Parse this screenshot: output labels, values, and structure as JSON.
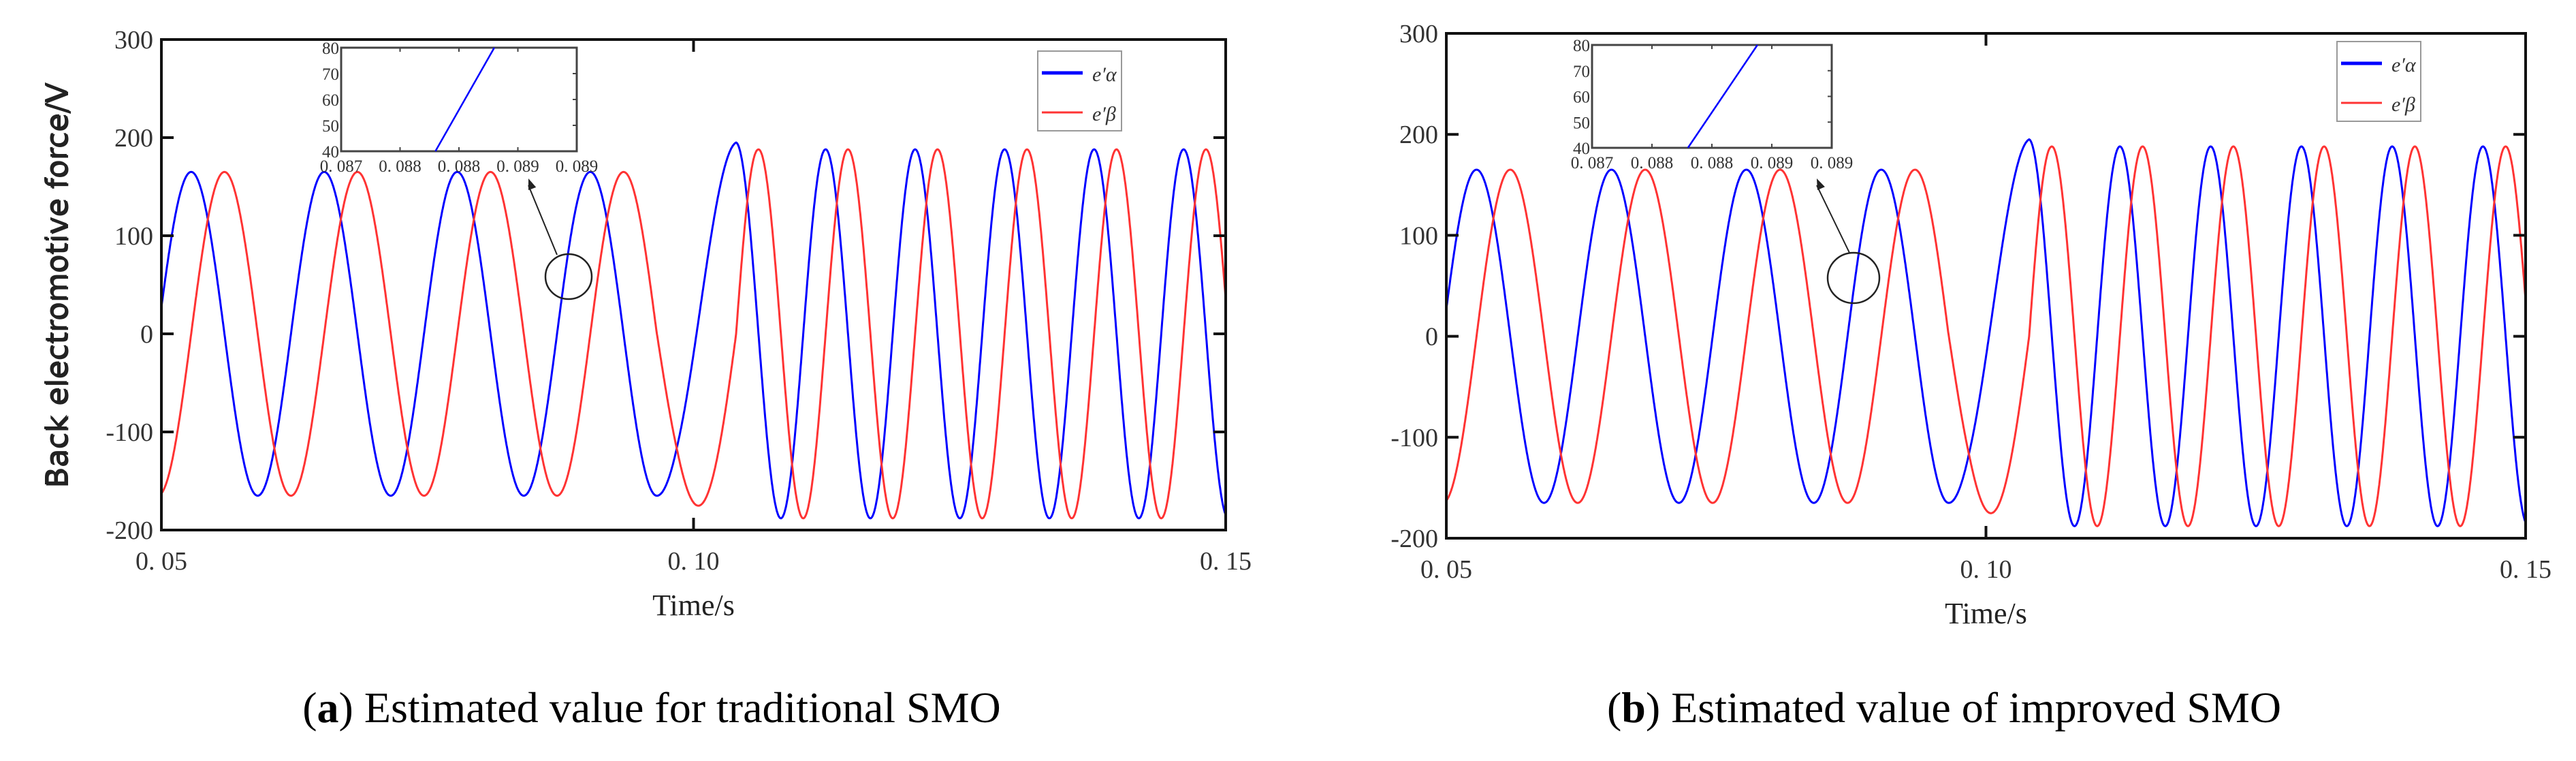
{
  "chart_data": [
    {
      "type": "line",
      "panel": "a",
      "caption_letter": "a",
      "caption_text": "Estimated value for traditional SMO",
      "xlabel": "Time/s",
      "ylabel": "Back electromotive force/V",
      "xlim": [
        0.05,
        0.15
      ],
      "ylim": [
        -200,
        300
      ],
      "xticks": [
        0.05,
        0.1,
        0.15
      ],
      "xtick_labels": [
        "0. 05",
        "0. 10",
        "0. 15"
      ],
      "yticks": [
        -200,
        -100,
        0,
        100,
        200,
        300
      ],
      "ytick_labels": [
        "-200",
        "-100",
        "0",
        "100",
        "200",
        "300"
      ],
      "legend": {
        "placement": "top-right",
        "entries": [
          {
            "label": "e′α",
            "color": "#0000ff"
          },
          {
            "label": "e′β",
            "color": "#ff3333"
          }
        ]
      },
      "series_model": {
        "description_of_curves": "e_alpha = A(t)·sin(2π·cycles(t)), e_beta = −A(t)·cos(2π·cycles(t))",
        "phase_knots_t": [
          0.05,
          0.0965,
          0.104,
          0.15
        ],
        "phase_knots_cycles": [
          0.026,
          3.746,
          4.25,
          9.72
        ],
        "amplitude_knots_t": [
          0.05,
          0.0985,
          0.104,
          0.106,
          0.15
        ],
        "amplitude_knots_v": [
          165,
          165,
          195,
          188,
          188
        ]
      },
      "series": [
        {
          "name": "e′α",
          "color": "#0000ff",
          "peaks_t": [
            0.0528,
            0.0653,
            0.0778,
            0.0903,
            0.104,
            0.1125,
            0.1209,
            0.1292,
            0.1376,
            0.1459
          ],
          "peak_value_before_0_1": 165,
          "peak_value_after_0_1": 188
        },
        {
          "name": "e′β",
          "color": "#ff3333",
          "peak_value_before_0_1": 165,
          "peak_value_after_0_1": 188
        }
      ],
      "inset": {
        "xlim": [
          0.087,
          0.089
        ],
        "ylim": [
          40,
          80
        ],
        "xtick_labels": [
          "0. 087",
          "0. 088",
          "0. 088",
          "0. 089",
          "0. 089"
        ],
        "ytick_labels": [
          "40",
          "50",
          "60",
          "70",
          "80"
        ],
        "line": {
          "x": [
            0.0878,
            0.0883
          ],
          "y": [
            40,
            80
          ],
          "color": "#0000ff"
        },
        "zoom_target": {
          "t": 0.089,
          "v": 60
        }
      }
    },
    {
      "type": "line",
      "panel": "b",
      "caption_letter": "b",
      "caption_text": "Estimated value of improved SMO",
      "xlabel": "Time/s",
      "ylabel": "Back electromotive force/V",
      "xlim": [
        0.05,
        0.15
      ],
      "ylim": [
        -200,
        300
      ],
      "xticks": [
        0.05,
        0.1,
        0.15
      ],
      "xtick_labels": [
        "0. 05",
        "0. 10",
        "0. 15"
      ],
      "yticks": [
        -200,
        -100,
        0,
        100,
        200,
        300
      ],
      "ytick_labels": [
        "-200",
        "-100",
        "0",
        "100",
        "200",
        "300"
      ],
      "legend": {
        "placement": "top-right",
        "entries": [
          {
            "label": "e′α",
            "color": "#0000ff"
          },
          {
            "label": "e′β",
            "color": "#ff3333"
          }
        ]
      },
      "series_model": {
        "description_of_curves": "e_alpha = A(t)·sin(2π·cycles(t)), e_beta = −A(t)·cos(2π·cycles(t))",
        "phase_knots_t": [
          0.05,
          0.0965,
          0.104,
          0.15
        ],
        "phase_knots_cycles": [
          0.026,
          3.746,
          4.25,
          9.72
        ],
        "amplitude_knots_t": [
          0.05,
          0.0985,
          0.104,
          0.106,
          0.15
        ],
        "amplitude_knots_v": [
          165,
          165,
          195,
          188,
          188
        ]
      },
      "series": [
        {
          "name": "e′α",
          "color": "#0000ff",
          "peaks_t": [
            0.0528,
            0.0653,
            0.0778,
            0.0903,
            0.104,
            0.1125,
            0.1209,
            0.1292,
            0.1376,
            0.1459
          ],
          "peak_value_before_0_1": 165,
          "peak_value_after_0_1": 188
        },
        {
          "name": "e′β",
          "color": "#ff3333",
          "peak_value_before_0_1": 165,
          "peak_value_after_0_1": 188
        }
      ],
      "inset": {
        "xlim": [
          0.087,
          0.089
        ],
        "ylim": [
          40,
          80
        ],
        "xtick_labels": [
          "0. 087",
          "0. 088",
          "0. 088",
          "0. 089",
          "0. 089"
        ],
        "ytick_labels": [
          "40",
          "50",
          "60",
          "70",
          "80"
        ],
        "line": {
          "x": [
            0.0878,
            0.08838
          ],
          "y": [
            40,
            80
          ],
          "color": "#0000ff"
        },
        "zoom_target": {
          "t": 0.089,
          "v": 60
        }
      }
    }
  ]
}
